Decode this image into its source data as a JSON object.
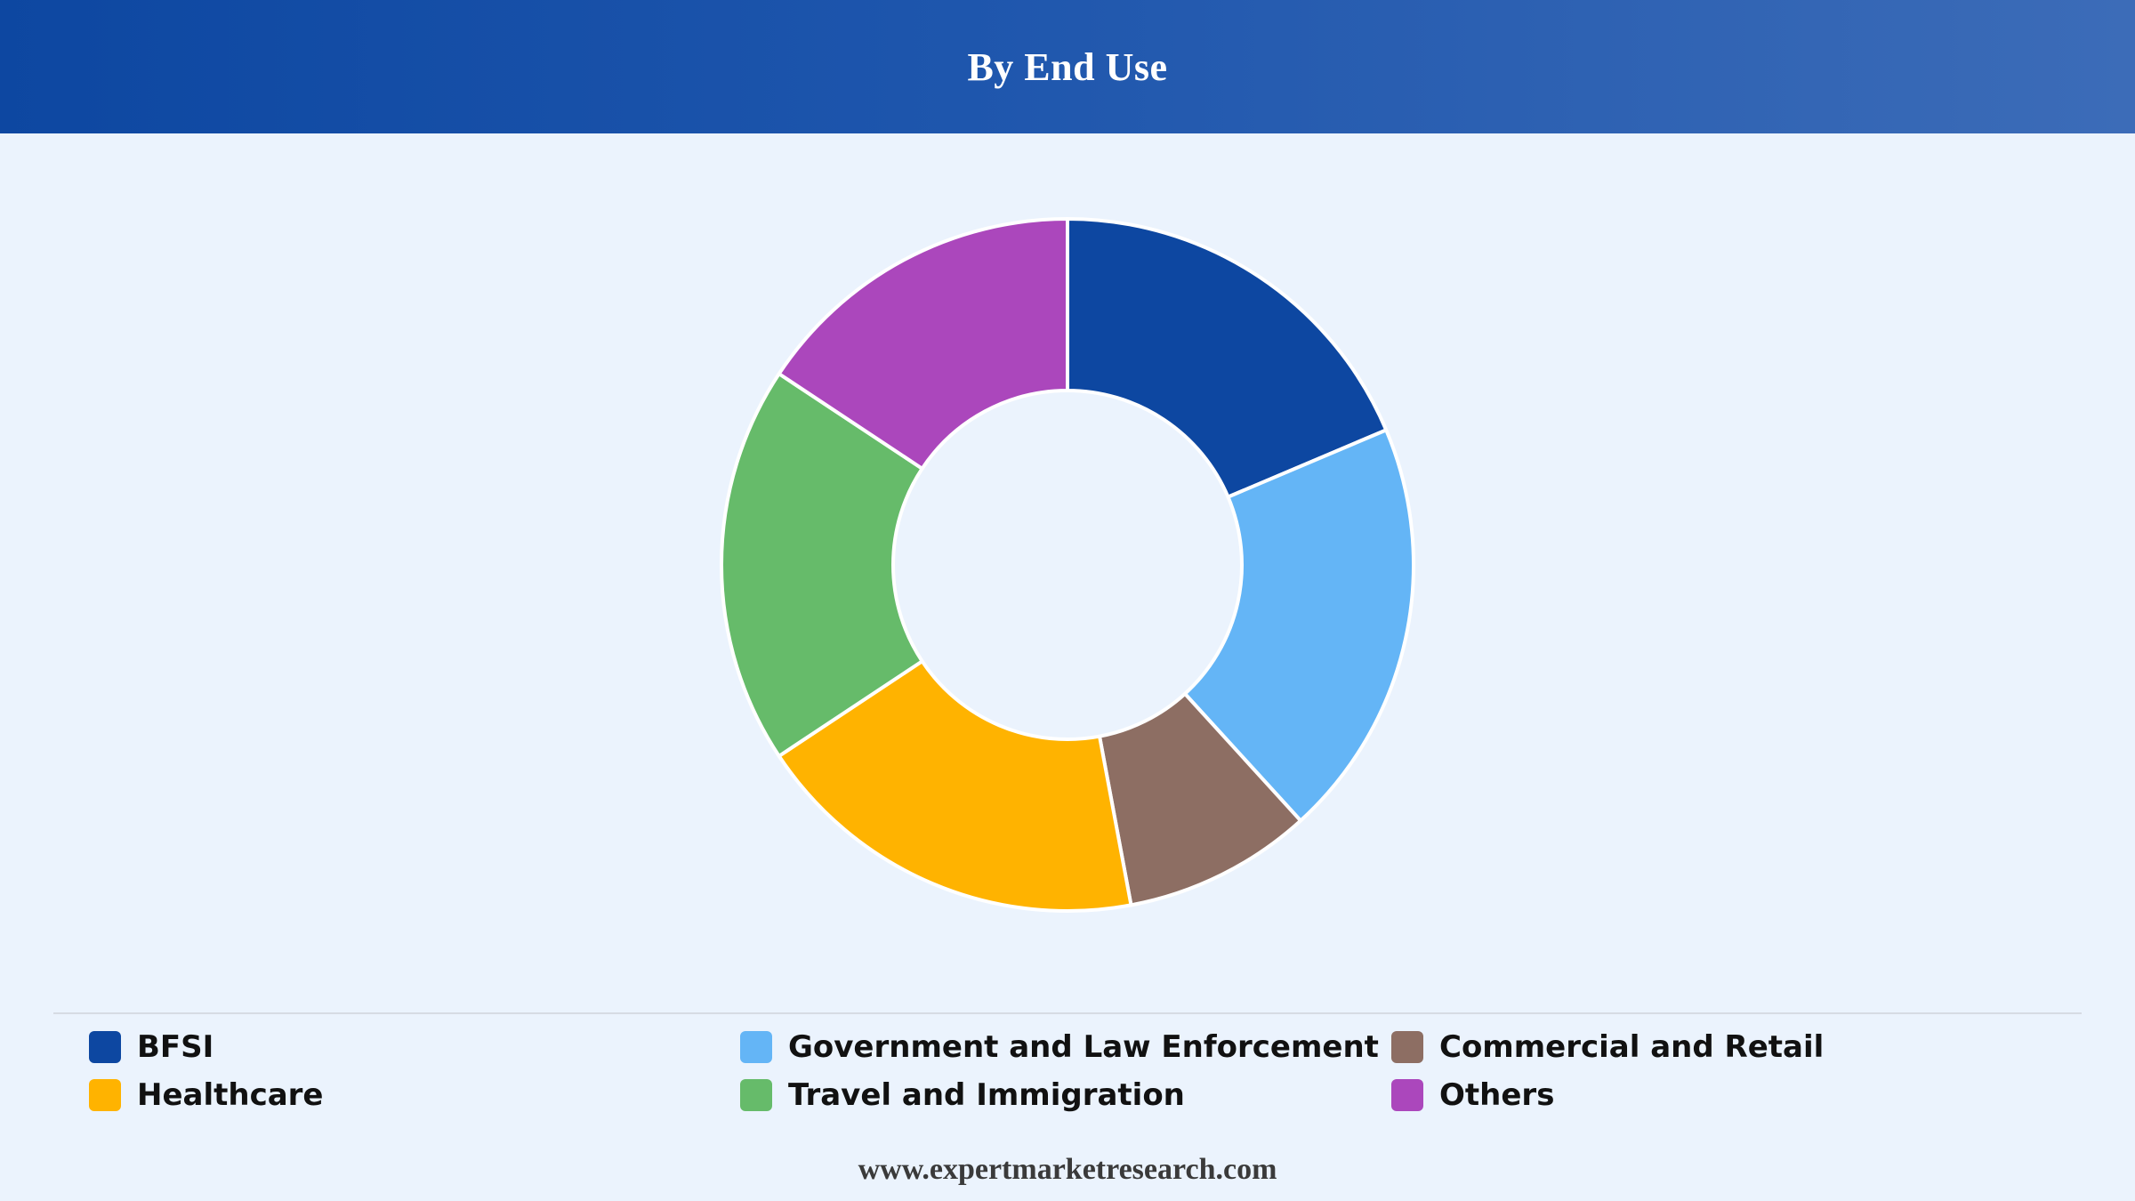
{
  "header": {
    "title": "By End Use"
  },
  "colors": {
    "header_start": "#0d47a1",
    "header_end": "#3c6cb8",
    "background": "#ebf3fd",
    "slice_border": "#ffffff"
  },
  "chart_data": {
    "type": "pie",
    "title": "By End Use",
    "donut": true,
    "legend_position": "bottom",
    "categories": [
      "BFSI",
      "Government and Law Enforcement",
      "Commercial and Retail",
      "Healthcare",
      "Travel and Immigration",
      "Others"
    ],
    "values": [
      19,
      20,
      9,
      19,
      19,
      16
    ],
    "colors": [
      "#0d47a1",
      "#64b5f6",
      "#8d6e63",
      "#ffb300",
      "#66bb6a",
      "#ab47bc"
    ]
  },
  "legend": {
    "items": [
      {
        "label": "BFSI",
        "color": "#0d47a1"
      },
      {
        "label": "Government and Law Enforcement",
        "color": "#64b5f6"
      },
      {
        "label": "Commercial and Retail",
        "color": "#8d6e63"
      },
      {
        "label": "Healthcare",
        "color": "#ffb300"
      },
      {
        "label": "Travel and Immigration",
        "color": "#66bb6a"
      },
      {
        "label": "Others",
        "color": "#ab47bc"
      }
    ]
  },
  "footer": {
    "website": "www.expertmarketresearch.com"
  }
}
